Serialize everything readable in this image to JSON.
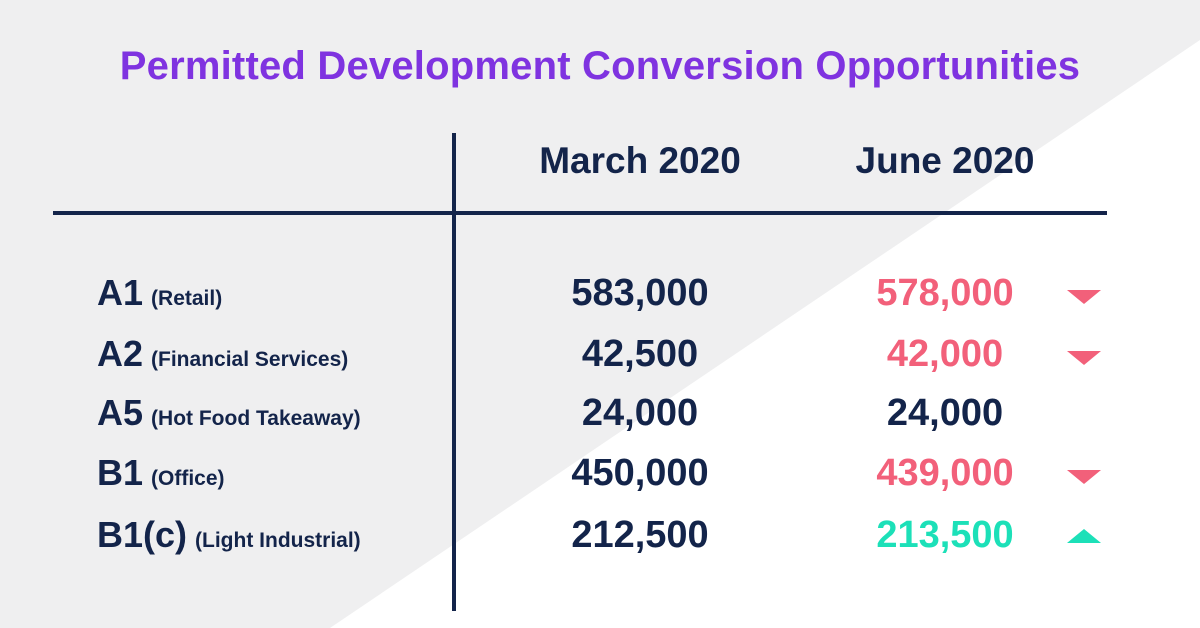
{
  "title": "Permitted Development Conversion Opportunities",
  "columns": {
    "march": "March 2020",
    "june": "June 2020"
  },
  "colors": {
    "title": "#7f33e0",
    "text": "#13244a",
    "decrease": "#f2607a",
    "increase": "#1ce0b8",
    "background_light": "#efeff0",
    "background_white": "#ffffff"
  },
  "chart_data": {
    "type": "table",
    "title": "Permitted Development Conversion Opportunities",
    "columns": [
      "March 2020",
      "June 2020"
    ],
    "rows": [
      {
        "code": "A1",
        "description": "(Retail)",
        "march": "583,000",
        "june": "578,000",
        "trend": "down"
      },
      {
        "code": "A2",
        "description": "(Financial Services)",
        "march": "42,500",
        "june": "42,000",
        "trend": "down"
      },
      {
        "code": "A5",
        "description": "(Hot Food Takeaway)",
        "march": "24,000",
        "june": "24,000",
        "trend": "none"
      },
      {
        "code": "B1",
        "description": "(Office)",
        "march": "450,000",
        "june": "439,000",
        "trend": "down"
      },
      {
        "code": "B1(c)",
        "description": "(Light Industrial)",
        "march": "212,500",
        "june": "213,500",
        "trend": "up"
      }
    ]
  }
}
